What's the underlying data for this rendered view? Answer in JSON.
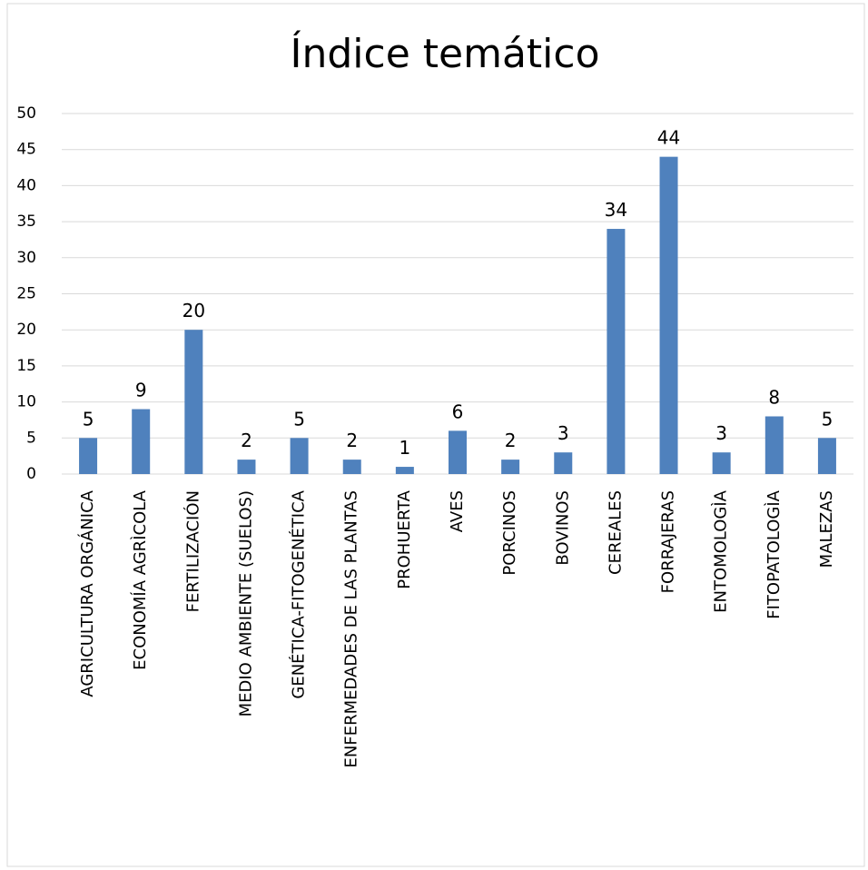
{
  "chart_data": {
    "type": "bar",
    "title": "Índice temático",
    "categories": [
      "AGRICULTURA ORGÁNICA",
      "ECONOMÍA AGRÌCOLA",
      "FERTILIZACIÓN",
      "MEDIO AMBIENTE (SUELOS)",
      "GENÉTICA-FITOGENÉTICA",
      "ENFERMEDADES DE LAS PLANTAS",
      "PROHUERTA",
      "AVES",
      "PORCINOS",
      "BOVINOS",
      "CEREALES",
      "FORRAJERAS",
      "ENTOMOLOGÌA",
      "FITOPATOLOGÌA",
      "MALEZAS"
    ],
    "values": [
      5,
      9,
      20,
      2,
      5,
      2,
      1,
      6,
      2,
      3,
      34,
      44,
      3,
      8,
      5
    ],
    "color": "#4f81bd",
    "ylim": [
      0,
      50
    ],
    "yticks": [
      0,
      5,
      10,
      15,
      20,
      25,
      30,
      35,
      40,
      45,
      50
    ],
    "grid": true
  }
}
